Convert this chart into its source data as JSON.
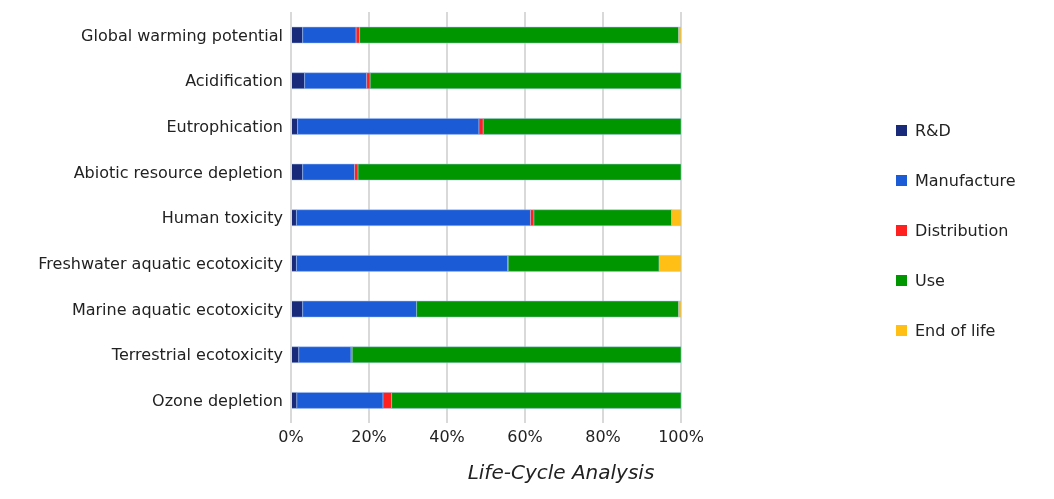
{
  "chart_data": {
    "type": "bar",
    "orientation": "horizontal",
    "stacked": true,
    "xlabel": "Life-Cycle Analysis",
    "categories": [
      "Global warming potential",
      "Acidification",
      "Eutrophication",
      "Abiotic resource depletion",
      "Human toxicity",
      "Freshwater aquatic ecotoxicity",
      "Marine aquatic ecotoxicity",
      "Terrestrial ecotoxicity",
      "Ozone depletion"
    ],
    "series": [
      {
        "name": "R&D",
        "color": "#1a2a7a",
        "values": [
          3.0,
          3.5,
          1.7,
          3.0,
          1.4,
          1.4,
          3.0,
          2.0,
          1.5
        ]
      },
      {
        "name": "Manufacture",
        "color": "#1b5bd6",
        "values": [
          13.7,
          15.9,
          46.5,
          13.3,
          60.0,
          54.2,
          29.2,
          13.4,
          22.1
        ]
      },
      {
        "name": "Distribution",
        "color": "#ff2020",
        "values": [
          0.9,
          0.9,
          1.1,
          0.9,
          0.9,
          0.1,
          0,
          0.3,
          2.2
        ]
      },
      {
        "name": "Use",
        "color": "#009600",
        "values": [
          81.8,
          79.7,
          50.7,
          82.8,
          35.3,
          38.7,
          67.2,
          84.3,
          74.2
        ]
      },
      {
        "name": "End of life",
        "color": "#ffbf14",
        "values": [
          0.6,
          0,
          0,
          0,
          2.4,
          5.6,
          0.6,
          0,
          0
        ]
      }
    ],
    "xlim": [
      0,
      100
    ],
    "xticks": [
      {
        "value": 0,
        "label": "0%"
      },
      {
        "value": 20,
        "label": "20%"
      },
      {
        "value": 40,
        "label": "40%"
      },
      {
        "value": 60,
        "label": "60%"
      },
      {
        "value": 80,
        "label": "80%"
      },
      {
        "value": 100,
        "label": "100%"
      }
    ],
    "grid": "x",
    "legend": "right"
  }
}
